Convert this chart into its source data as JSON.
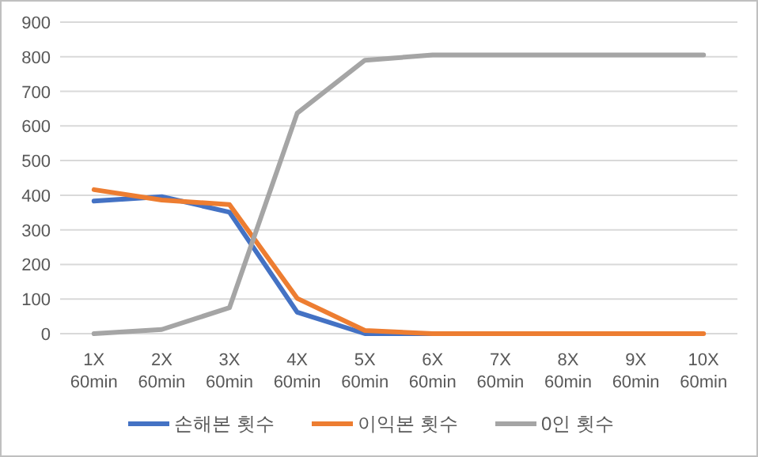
{
  "chart_data": {
    "type": "line",
    "categories": [
      "1X\n60min",
      "2X\n60min",
      "3X\n60min",
      "4X\n60min",
      "5X\n60min",
      "6X\n60min",
      "7X\n60min",
      "8X\n60min",
      "9X\n60min",
      "10X\n60min"
    ],
    "series": [
      {
        "name": "손해본 횟수",
        "color": "#4472c4",
        "values": [
          383,
          396,
          351,
          62,
          0,
          0,
          0,
          null,
          null,
          null
        ]
      },
      {
        "name": "이익본 횟수",
        "color": "#ed7d31",
        "values": [
          416,
          386,
          373,
          102,
          9,
          0,
          0,
          0,
          0,
          0
        ]
      },
      {
        "name": "0인 횟수",
        "color": "#a5a5a5",
        "values": [
          0,
          12,
          75,
          637,
          790,
          805,
          805,
          805,
          805,
          805
        ]
      }
    ],
    "ylim": [
      0,
      900
    ],
    "yticks": [
      0,
      100,
      200,
      300,
      400,
      500,
      600,
      700,
      800,
      900
    ],
    "grid": "y",
    "legend": "bottom",
    "marker": "none",
    "line_style": "solid"
  }
}
